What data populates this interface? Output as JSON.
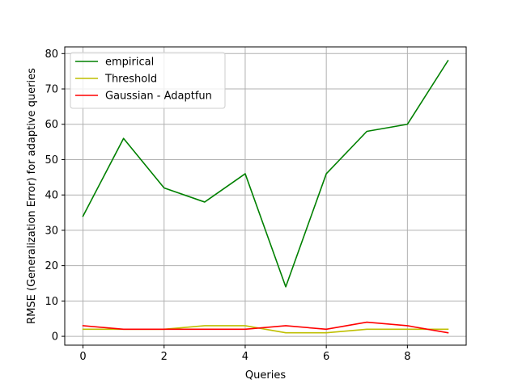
{
  "chart_data": {
    "type": "line",
    "title": "",
    "xlabel": "Queries",
    "ylabel": "RMSE (Generalization Error) for adaptive queries",
    "xlim": [
      -0.45,
      9.45
    ],
    "ylim": [
      -2.5,
      81.9
    ],
    "xticks": [
      0,
      2,
      4,
      6,
      8
    ],
    "yticks": [
      0,
      10,
      20,
      30,
      40,
      50,
      60,
      70,
      80
    ],
    "grid": true,
    "legend_position": "top-left",
    "x": [
      0,
      1,
      2,
      3,
      4,
      5,
      6,
      7,
      8,
      9
    ],
    "series": [
      {
        "name": "empirical",
        "color": "#008000",
        "values": [
          34,
          56,
          42,
          38,
          46,
          14,
          46,
          58,
          60,
          78
        ]
      },
      {
        "name": "Threshold",
        "color": "#bfbf00",
        "values": [
          2,
          2,
          2,
          3,
          3,
          1,
          1,
          2,
          2,
          2
        ]
      },
      {
        "name": "Gaussian - Adaptfun",
        "color": "#ff0000",
        "values": [
          3,
          2,
          2,
          2,
          2,
          3,
          2,
          4,
          3,
          1
        ]
      }
    ]
  }
}
